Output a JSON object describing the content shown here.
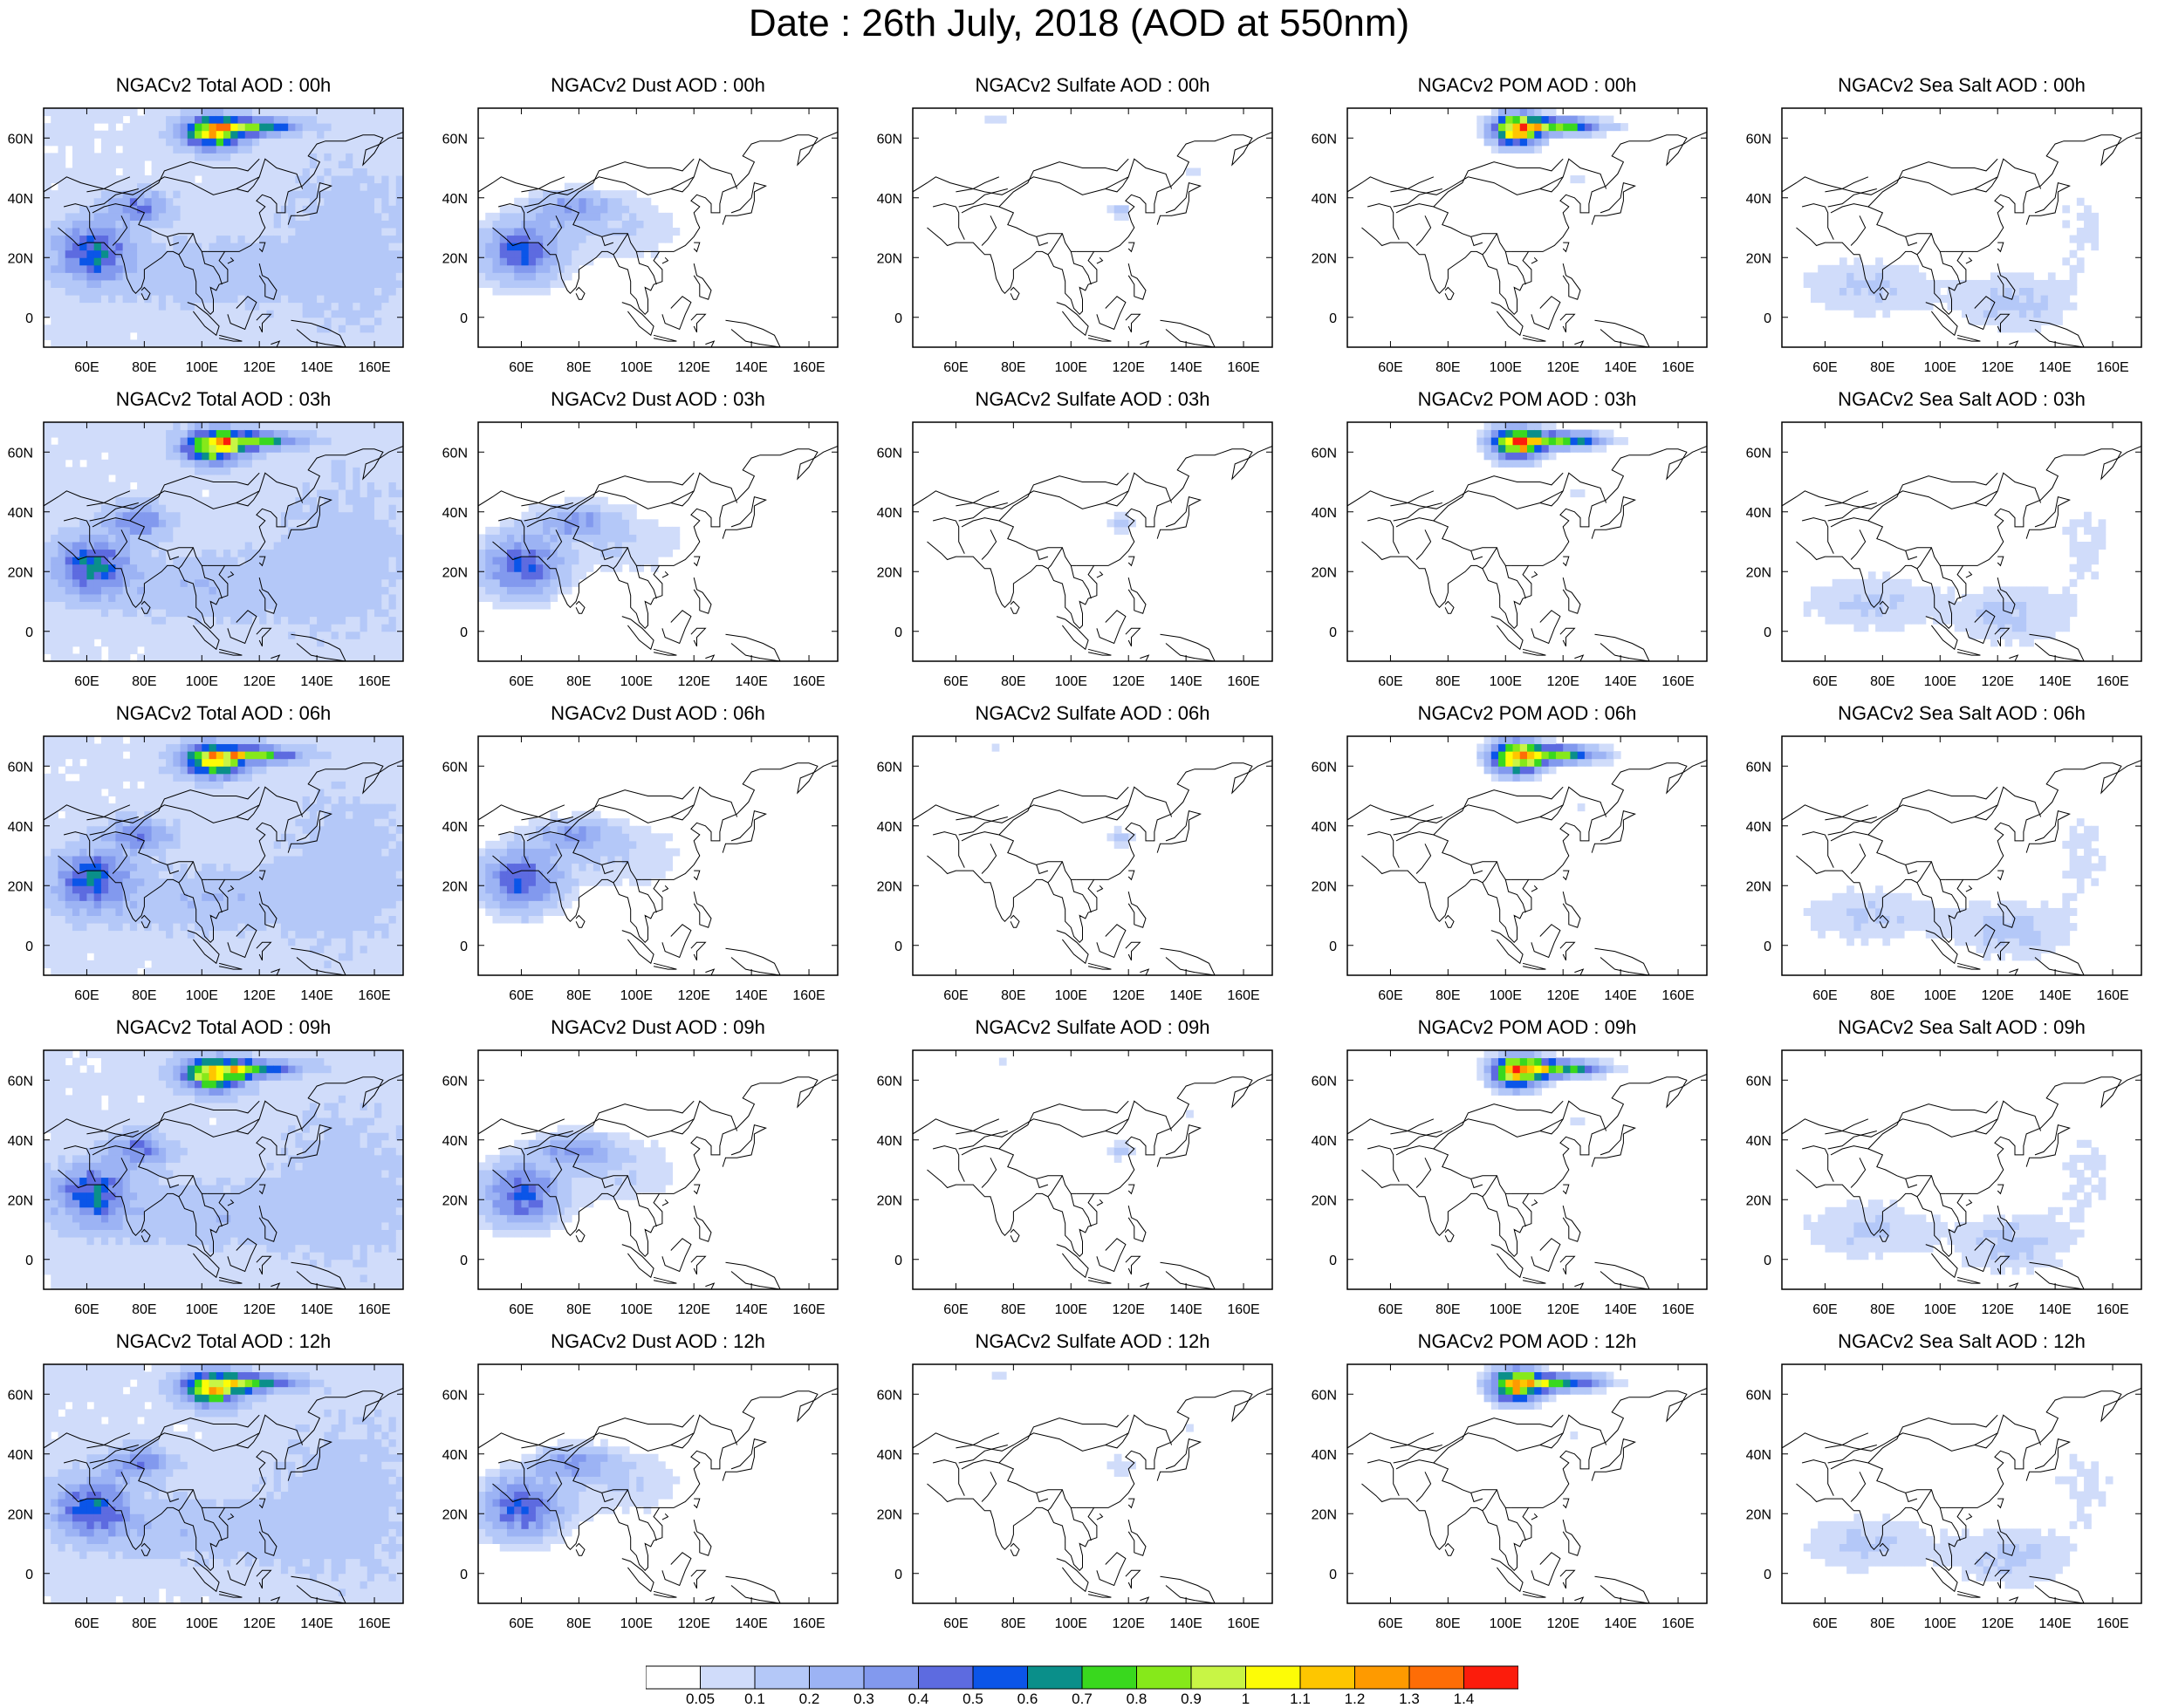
{
  "figure": {
    "title": "Date : 26th July, 2018 (AOD at 550nm)",
    "map_extent": {
      "lon": [
        45,
        170
      ],
      "lat": [
        -10,
        70
      ]
    },
    "lon_ticks": [
      "60E",
      "80E",
      "100E",
      "120E",
      "140E",
      "160E"
    ],
    "lat_ticks": [
      "60N",
      "40N",
      "20N",
      "0"
    ]
  },
  "panel_titles": [
    [
      "NGACv2 Total AOD : 00h",
      "NGACv2 Dust AOD : 00h",
      "NGACv2 Sulfate AOD : 00h",
      "NGACv2 POM AOD : 00h",
      "NGACv2 Sea Salt AOD : 00h"
    ],
    [
      "NGACv2 Total AOD : 03h",
      "NGACv2 Dust AOD : 03h",
      "NGACv2 Sulfate AOD : 03h",
      "NGACv2 POM AOD : 03h",
      "NGACv2 Sea Salt AOD : 03h"
    ],
    [
      "NGACv2 Total AOD : 06h",
      "NGACv2 Dust AOD : 06h",
      "NGACv2 Sulfate AOD : 06h",
      "NGACv2 POM AOD : 06h",
      "NGACv2 Sea Salt AOD : 06h"
    ],
    [
      "NGACv2 Total AOD : 09h",
      "NGACv2 Dust AOD : 09h",
      "NGACv2 Sulfate AOD : 09h",
      "NGACv2 POM AOD : 09h",
      "NGACv2 Sea Salt  AOD : 09h"
    ],
    [
      "NGACv2 Total AOD  : 12h",
      "NGACv2 Dust AOD : 12h",
      "NGACv2 Sulfate AOD : 12h",
      "NGACv2 POM  AOD : 12h",
      "NGACv2 Sea Salt  AOD : 12h"
    ]
  ],
  "colorbar": {
    "labels": [
      "0.05",
      "0.1",
      "0.2",
      "0.3",
      "0.4",
      "0.5",
      "0.6",
      "0.7",
      "0.8",
      "0.9",
      "1",
      "1.1",
      "1.2",
      "1.3",
      "1.4"
    ],
    "colors": [
      "#ffffff",
      "#d0dcfa",
      "#b4c8f8",
      "#9cb3f4",
      "#8299ee",
      "#5d6be0",
      "#0b55e8",
      "#0a8f8a",
      "#39d81e",
      "#86e91a",
      "#c8f545",
      "#fdfc06",
      "#fec600",
      "#fe9a00",
      "#fe6d06",
      "#fc1c0c"
    ]
  }
}
